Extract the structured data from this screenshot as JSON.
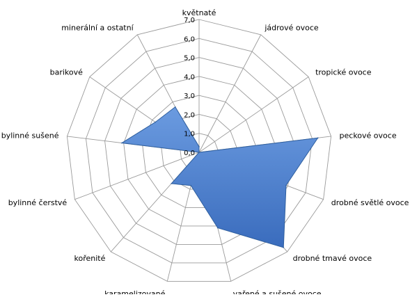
{
  "chart_data": {
    "type": "radar",
    "categories": [
      "květnaté",
      "jádrové ovoce",
      "tropické ovoce",
      "peckové ovoce",
      "drobné světlé ovoce",
      "drobné tmavé ovoce",
      "vařené a sušené ovoce",
      "karamelizované",
      "kořenité",
      "bylinné čerstvé",
      "bylinné sušené",
      "barikové",
      "minerální a ostatní"
    ],
    "series": [
      {
        "values": [
          0.3,
          0.0,
          0.0,
          6.3,
          4.9,
          6.7,
          4.1,
          1.8,
          2.2,
          0.0,
          4.1,
          2.8,
          2.7
        ],
        "color": "#4a7fcf"
      }
    ],
    "rlim": [
      0,
      7
    ],
    "ticks": [
      "0,0",
      "1,0",
      "2,0",
      "3,0",
      "4,0",
      "5,0",
      "6,0",
      "7,0"
    ],
    "grid": true,
    "legend": "none"
  }
}
